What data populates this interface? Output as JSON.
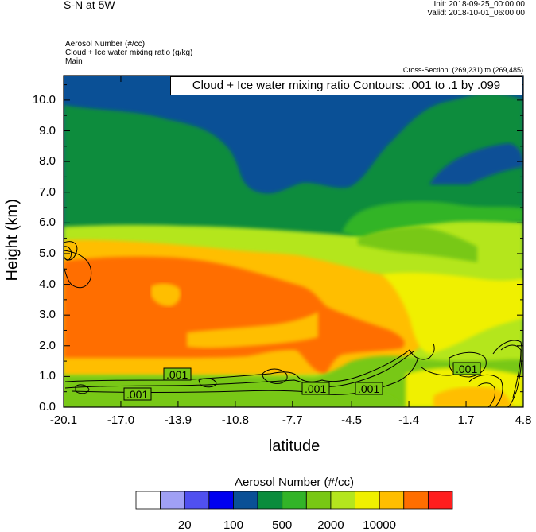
{
  "header": {
    "title": "S-N at 5W",
    "init": "Init: 2018-09-25_00:00:00",
    "valid": "Valid: 2018-10-01_06:00:00",
    "field_lines": [
      "Aerosol Number   (#/cc)",
      "Cloud + Ice water mixing ratio   (g/kg)",
      "Main"
    ],
    "cross_section": "Cross-Section: (269,231) to (269,485)"
  },
  "contour_label": "Cloud + Ice water mixing ratio Contours: .001 to .1 by .099",
  "chart_data": {
    "type": "heatmap",
    "xlabel": "latitude",
    "ylabel": "Height (km)",
    "xlim": [
      -20.1,
      4.8
    ],
    "ylim": [
      0,
      10.8
    ],
    "x_ticks": [
      "-20.1",
      "-17.0",
      "-13.9",
      "-10.8",
      "-7.7",
      "-4.5",
      "-1.4",
      "1.7",
      "4.8"
    ],
    "y_ticks": [
      "0.0",
      "1.0",
      "2.0",
      "3.0",
      "4.0",
      "5.0",
      "6.0",
      "7.0",
      "8.0",
      "9.0",
      "10.0"
    ],
    "colorbar": {
      "title": "Aerosol Number  (#/cc)",
      "colors": [
        "#ffffff",
        "#a0a0f5",
        "#5050f0",
        "#0000f0",
        "#0a5096",
        "#0a8c3c",
        "#32b428",
        "#78c814",
        "#b4e61e",
        "#f0f000",
        "#ffbe00",
        "#ff6e00",
        "#ff1e1e"
      ],
      "labels": [
        "20",
        "100",
        "500",
        "2000",
        "10000"
      ]
    },
    "contour_labels": [
      ".001",
      ".001",
      ".001",
      ".001",
      ".001"
    ]
  }
}
